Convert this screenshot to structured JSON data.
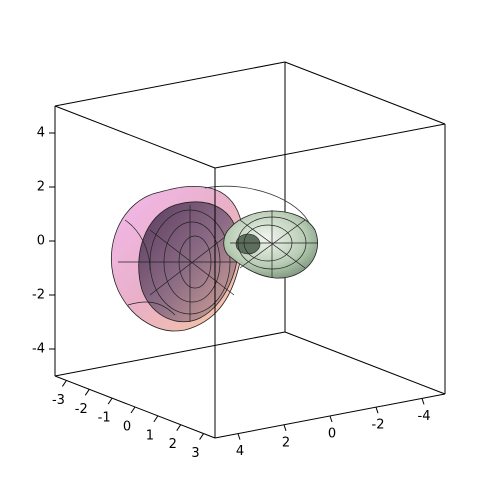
{
  "chart_data": {
    "type": "surface3d",
    "xlim": [
      -3.5,
      3.5
    ],
    "xticks": [
      -3,
      -2,
      -1,
      0,
      1,
      2,
      3
    ],
    "ylim": [
      5,
      -5
    ],
    "yticks": [
      4,
      2,
      0,
      -2,
      -4
    ],
    "zlim": [
      -5,
      5
    ],
    "zticks": [
      -4,
      -2,
      0,
      2,
      4
    ]
  }
}
